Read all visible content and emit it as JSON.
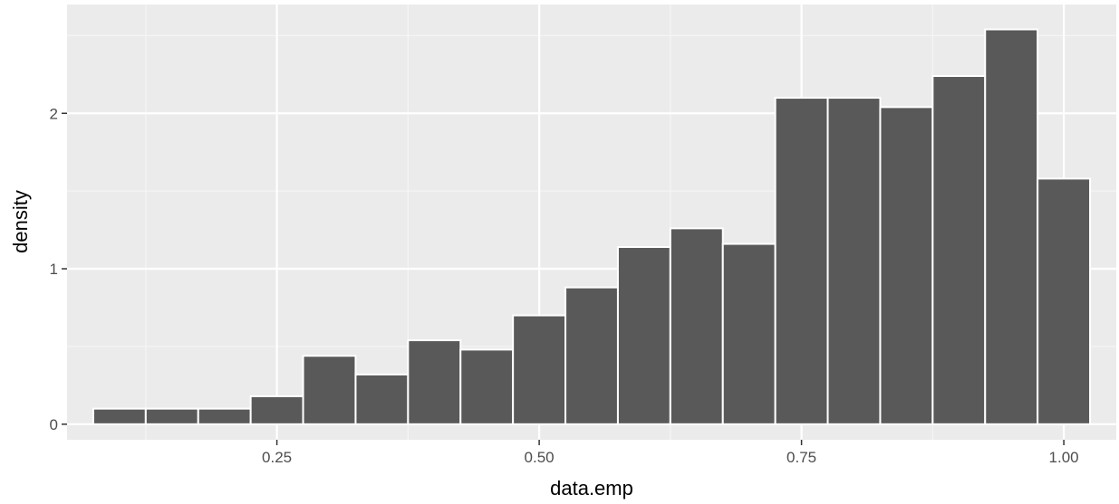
{
  "chart_data": {
    "type": "histogram",
    "xlabel": "data.emp",
    "ylabel": "density",
    "xlim": [
      0.05,
      1.05
    ],
    "ylim": [
      -0.1,
      2.7
    ],
    "x_ticks": [
      {
        "value": 0.25,
        "label": "0.25"
      },
      {
        "value": 0.5,
        "label": "0.50"
      },
      {
        "value": 0.75,
        "label": "0.75"
      },
      {
        "value": 1.0,
        "label": "1.00"
      }
    ],
    "y_ticks": [
      {
        "value": 0,
        "label": "0"
      },
      {
        "value": 1,
        "label": "1"
      },
      {
        "value": 2,
        "label": "2"
      }
    ],
    "grid": true,
    "bin_width": 0.05,
    "bins": [
      {
        "x_start": 0.075,
        "x_end": 0.125,
        "density": 0.1
      },
      {
        "x_start": 0.125,
        "x_end": 0.175,
        "density": 0.1
      },
      {
        "x_start": 0.175,
        "x_end": 0.225,
        "density": 0.1
      },
      {
        "x_start": 0.225,
        "x_end": 0.275,
        "density": 0.18
      },
      {
        "x_start": 0.275,
        "x_end": 0.325,
        "density": 0.44
      },
      {
        "x_start": 0.325,
        "x_end": 0.375,
        "density": 0.32
      },
      {
        "x_start": 0.375,
        "x_end": 0.425,
        "density": 0.54
      },
      {
        "x_start": 0.425,
        "x_end": 0.475,
        "density": 0.48
      },
      {
        "x_start": 0.475,
        "x_end": 0.525,
        "density": 0.7
      },
      {
        "x_start": 0.525,
        "x_end": 0.575,
        "density": 0.88
      },
      {
        "x_start": 0.575,
        "x_end": 0.625,
        "density": 1.14
      },
      {
        "x_start": 0.625,
        "x_end": 0.675,
        "density": 1.26
      },
      {
        "x_start": 0.675,
        "x_end": 0.725,
        "density": 1.16
      },
      {
        "x_start": 0.725,
        "x_end": 0.775,
        "density": 2.1
      },
      {
        "x_start": 0.775,
        "x_end": 0.825,
        "density": 2.1
      },
      {
        "x_start": 0.825,
        "x_end": 0.875,
        "density": 2.04
      },
      {
        "x_start": 0.875,
        "x_end": 0.925,
        "density": 2.24
      },
      {
        "x_start": 0.925,
        "x_end": 0.975,
        "density": 2.54
      },
      {
        "x_start": 0.975,
        "x_end": 1.025,
        "density": 1.58
      }
    ],
    "colors": {
      "panel_background": "#ebebeb",
      "grid_major": "#ffffff",
      "grid_minor": "#f5f5f5",
      "bar_fill": "#595959",
      "bar_outline": "#ffffff",
      "tick_mark": "#333333"
    }
  }
}
